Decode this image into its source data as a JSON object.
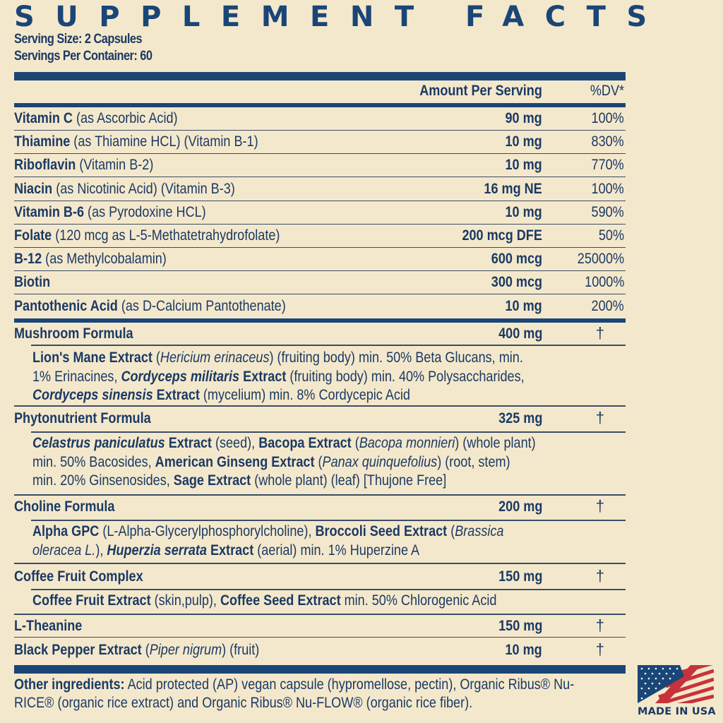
{
  "title": "SUPPLEMENT FACTS",
  "serving_size": "Serving Size: 2 Capsules",
  "servings_per_container": "Servings Per Container: 60",
  "header": {
    "amount": "Amount Per Serving",
    "dv": "%DV*"
  },
  "vitamins": [
    {
      "name": "Vitamin C",
      "detail": " (as Ascorbic Acid)",
      "amount": "90 mg",
      "dv": "100%"
    },
    {
      "name": "Thiamine",
      "detail": " (as Thiamine HCL) (Vitamin B-1)",
      "amount": "10 mg",
      "dv": "830%"
    },
    {
      "name": "Riboflavin",
      "detail": " (Vitamin B-2)",
      "amount": "10 mg",
      "dv": "770%"
    },
    {
      "name": "Niacin",
      "detail": " (as Nicotinic Acid) (Vitamin B-3)",
      "amount": "16 mg NE",
      "dv": "100%"
    },
    {
      "name": "Vitamin B-6",
      "detail": " (as Pyrodoxine HCL)",
      "amount": "10 mg",
      "dv": "590%"
    },
    {
      "name": "Folate",
      "detail": " (120 mcg as L-5-Methatetrahydrofolate)",
      "amount": "200 mcg DFE",
      "dv": "50%"
    },
    {
      "name": "B-12",
      "detail": " (as Methylcobalamin)",
      "amount": "600 mcg",
      "dv": "25000%"
    },
    {
      "name": "Biotin",
      "detail": "",
      "amount": "300 mcg",
      "dv": "1000%"
    },
    {
      "name": "Pantothenic Acid",
      "detail": " (as D-Calcium Pantothenate)",
      "amount": "10 mg",
      "dv": "200%"
    }
  ],
  "formulas": {
    "mushroom": {
      "name": "Mushroom Formula",
      "amount": "400 mg",
      "dv": "†",
      "lines": [
        [
          [
            "b",
            "Lion's Mane Extract"
          ],
          [
            "n",
            " ("
          ],
          [
            "i",
            "Hericium erinaceus"
          ],
          [
            "n",
            ") (fruiting body) min. 50% Beta Glucans, min."
          ]
        ],
        [
          [
            "n",
            "1% Erinacines, "
          ],
          [
            "bi",
            "Cordyceps militaris"
          ],
          [
            "b",
            " Extract"
          ],
          [
            "n",
            " (fruiting body) min. 40% Polysaccharides,"
          ]
        ],
        [
          [
            "bi",
            "Cordyceps sinensis"
          ],
          [
            "b",
            " Extract"
          ],
          [
            "n",
            " (mycelium) min. 8% Cordycepic Acid"
          ]
        ]
      ]
    },
    "phyto": {
      "name": "Phytonutrient Formula",
      "amount": "325 mg",
      "dv": "†",
      "lines": [
        [
          [
            "bi",
            "Celastrus paniculatus"
          ],
          [
            "b",
            " Extract"
          ],
          [
            "n",
            " (seed), "
          ],
          [
            "b",
            "Bacopa Extract"
          ],
          [
            "n",
            " ("
          ],
          [
            "i",
            "Bacopa monnieri"
          ],
          [
            "n",
            ") (whole plant)"
          ]
        ],
        [
          [
            "n",
            "min. 50% Bacosides, "
          ],
          [
            "b",
            "American Ginseng Extract"
          ],
          [
            "n",
            " ("
          ],
          [
            "i",
            "Panax quinquefolius"
          ],
          [
            "n",
            ") (root, stem)"
          ]
        ],
        [
          [
            "n",
            "min. 20% Ginsenosides, "
          ],
          [
            "b",
            "Sage Extract"
          ],
          [
            "n",
            " (whole plant) (leaf) [Thujone Free]"
          ]
        ]
      ]
    },
    "choline": {
      "name": "Choline Formula",
      "amount": "200 mg",
      "dv": "†",
      "lines": [
        [
          [
            "b",
            "Alpha GPC"
          ],
          [
            "n",
            " (L-Alpha-Glycerylphosphorylcholine), "
          ],
          [
            "b",
            "Broccoli Seed Extract"
          ],
          [
            "n",
            " ("
          ],
          [
            "i",
            "Brassica"
          ]
        ],
        [
          [
            "i",
            "oleracea L."
          ],
          [
            "n",
            "), "
          ],
          [
            "bi",
            "Huperzia serrata"
          ],
          [
            "b",
            " Extract"
          ],
          [
            "n",
            " (aerial) min. 1% Huperzine A"
          ]
        ]
      ]
    },
    "coffee": {
      "name": "Coffee Fruit Complex",
      "amount": "150 mg",
      "dv": "†",
      "lines": [
        [
          [
            "b",
            "Coffee Fruit Extract"
          ],
          [
            "n",
            " (skin,pulp), "
          ],
          [
            "b",
            "Coffee Seed Extract"
          ],
          [
            "n",
            " min. 50% Chlorogenic Acid"
          ]
        ]
      ]
    }
  },
  "theanine": {
    "name": "L-Theanine",
    "amount": "150 mg",
    "dv": "†"
  },
  "pepper": {
    "name": "Black Pepper Extract",
    "detail_pre": " (",
    "latin": "Piper nigrum",
    "detail_post": ") (fruit)",
    "amount": "10 mg",
    "dv": "†"
  },
  "other": {
    "label": "Other ingredients:",
    "line1": " Acid protected (AP) vegan capsule (hypromellose, pectin), Organic Ribus® Nu-",
    "line2": "RICE® (organic rice extract) and Organic Ribus® Nu-FLOW® (organic rice fiber)."
  },
  "badge": {
    "text": "MADE IN USA",
    "icon": "us-flag-icon"
  },
  "colors": {
    "background": "#f4e8cc",
    "navy": "#1a4677",
    "text": "#1b3a64",
    "flag_red": "#c8323b"
  }
}
